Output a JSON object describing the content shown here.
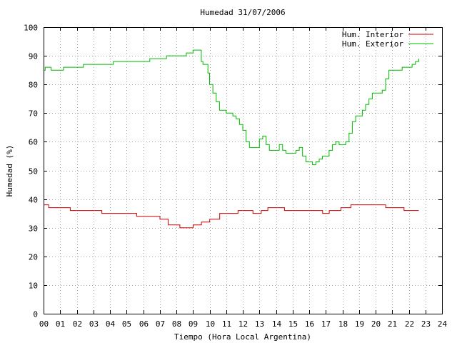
{
  "chart_data": {
    "type": "line",
    "title": "Humedad 31/07/2006",
    "xlabel": "Tiempo (Hora Local Argentina)",
    "ylabel": "Humedad (%)",
    "xlim": [
      0,
      24
    ],
    "ylim": [
      0,
      100
    ],
    "xticks": [
      "00",
      "01",
      "02",
      "03",
      "04",
      "05",
      "06",
      "07",
      "08",
      "09",
      "10",
      "11",
      "12",
      "13",
      "14",
      "15",
      "16",
      "17",
      "18",
      "19",
      "20",
      "21",
      "22",
      "23",
      "24"
    ],
    "yticks": [
      "0",
      "10",
      "20",
      "30",
      "40",
      "50",
      "60",
      "70",
      "80",
      "90",
      "100"
    ],
    "grid": true,
    "legend_position": "top-right",
    "series": [
      {
        "name": "Hum. Interior",
        "color": "#cc0000",
        "x": [
          0.0,
          0.3,
          0.31,
          1.6,
          1.61,
          3.5,
          3.51,
          5.6,
          5.61,
          7.0,
          7.01,
          7.5,
          7.51,
          8.2,
          8.21,
          9.0,
          9.01,
          9.5,
          9.51,
          10.0,
          10.01,
          10.6,
          10.61,
          11.7,
          11.71,
          12.6,
          12.61,
          13.1,
          13.11,
          13.5,
          13.51,
          14.5,
          14.51,
          14.8,
          14.81,
          16.8,
          16.81,
          17.2,
          17.21,
          17.9,
          17.91,
          18.5,
          18.51,
          20.6,
          20.61,
          21.7,
          21.71,
          22.6
        ],
        "y": [
          38,
          38,
          37,
          37,
          36,
          36,
          35,
          35,
          34,
          34,
          33,
          33,
          31,
          31,
          30,
          30,
          31,
          31,
          32,
          32,
          33,
          33,
          35,
          35,
          36,
          36,
          35,
          35,
          36,
          36,
          37,
          37,
          36,
          36,
          36,
          36,
          35,
          35,
          36,
          36,
          37,
          37,
          38,
          38,
          37,
          37,
          36,
          36
        ]
      },
      {
        "name": "Hum. Exterior",
        "color": "#00bb00",
        "x": [
          0.0,
          0.1,
          0.35,
          0.45,
          1.1,
          1.2,
          2.3,
          2.4,
          3.3,
          3.4,
          4.1,
          4.2,
          5.4,
          5.5,
          6.3,
          6.4,
          7.3,
          7.4,
          8.0,
          8.1,
          8.6,
          8.7,
          9.0,
          9.1,
          9.5,
          9.6,
          9.8,
          9.9,
          10.0,
          10.2,
          10.4,
          10.6,
          10.8,
          11.0,
          11.2,
          11.4,
          11.6,
          11.8,
          12.0,
          12.2,
          12.4,
          12.6,
          12.8,
          13.0,
          13.2,
          13.4,
          13.6,
          13.8,
          14.0,
          14.2,
          14.4,
          14.6,
          14.8,
          15.0,
          15.2,
          15.4,
          15.6,
          15.8,
          16.0,
          16.2,
          16.4,
          16.6,
          16.8,
          17.0,
          17.2,
          17.4,
          17.6,
          17.8,
          18.0,
          18.2,
          18.4,
          18.6,
          18.8,
          19.0,
          19.2,
          19.4,
          19.6,
          19.8,
          20.0,
          20.2,
          20.4,
          20.6,
          20.8,
          21.0,
          21.2,
          21.4,
          21.6,
          21.8,
          22.0,
          22.2,
          22.4,
          22.6
        ],
        "y": [
          85,
          86,
          86,
          85,
          85,
          86,
          86,
          87,
          87,
          87,
          87,
          88,
          88,
          88,
          88,
          89,
          89,
          90,
          90,
          90,
          91,
          91,
          92,
          92,
          88,
          87,
          87,
          84,
          80,
          77,
          74,
          71,
          71,
          70,
          70,
          69,
          68,
          66,
          64,
          60,
          58,
          58,
          58,
          61,
          62,
          59,
          57,
          57,
          57,
          59,
          57,
          56,
          56,
          56,
          57,
          58,
          55,
          53,
          53,
          52,
          53,
          54,
          55,
          55,
          57,
          59,
          60,
          59,
          59,
          60,
          63,
          67,
          69,
          69,
          71,
          73,
          75,
          77,
          77,
          77,
          78,
          82,
          85,
          85,
          85,
          85,
          86,
          86,
          86,
          87,
          88,
          89
        ]
      }
    ]
  }
}
